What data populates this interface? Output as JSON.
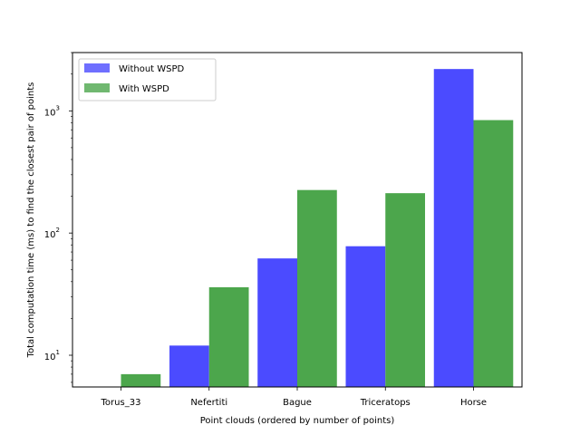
{
  "chart_data": {
    "type": "bar",
    "title": "",
    "xlabel": "Point clouds (ordered by number of points)",
    "ylabel": "Total computation time (ms) to find the closest pair of points",
    "yscale": "log",
    "ylim": [
      5.5,
      3000
    ],
    "categories": [
      "Torus_33",
      "Nefertiti",
      "Bague",
      "Triceratops",
      "Horse"
    ],
    "series": [
      {
        "name": "Without WSPD",
        "color": "#4b4bff",
        "values": [
          null,
          12,
          62,
          78,
          2200
        ]
      },
      {
        "name": "With WSPD",
        "color": "#4ca64c",
        "values": [
          7,
          36,
          225,
          212,
          840
        ]
      }
    ],
    "y_ticks": [
      {
        "value": 10,
        "label_base": "10",
        "label_exp": "1"
      },
      {
        "value": 100,
        "label_base": "10",
        "label_exp": "2"
      },
      {
        "value": 1000,
        "label_base": "10",
        "label_exp": "3"
      }
    ],
    "grid": false,
    "legend_position": "upper-left"
  }
}
